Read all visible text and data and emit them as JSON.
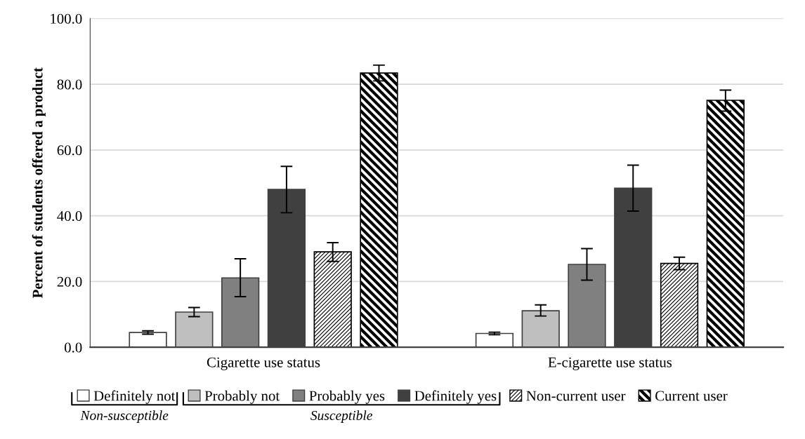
{
  "chart_data": {
    "type": "bar",
    "ylabel": "Percent of students offered a product",
    "categories": [
      "Cigarette use status",
      "E-cigarette use status"
    ],
    "series": [
      {
        "name": "Definitely not",
        "color": "#ffffff",
        "values": [
          4.5,
          4.2
        ],
        "errors": [
          [
            4.0,
            5.0
          ],
          [
            3.8,
            4.6
          ]
        ]
      },
      {
        "name": "Probably not",
        "color": "#bfbfbf",
        "values": [
          10.7,
          11.1
        ],
        "errors": [
          [
            9.3,
            12.1
          ],
          [
            9.5,
            12.9
          ]
        ]
      },
      {
        "name": "Probably yes",
        "color": "#808080",
        "values": [
          21.1,
          25.2
        ],
        "errors": [
          [
            15.4,
            26.9
          ],
          [
            20.4,
            30.0
          ]
        ]
      },
      {
        "name": "Definitely yes",
        "color": "#404040",
        "values": [
          48.0,
          48.4
        ],
        "errors": [
          [
            40.9,
            55.0
          ],
          [
            41.4,
            55.4
          ]
        ]
      },
      {
        "name": "Non-current user",
        "color": "#000000",
        "values": [
          29.0,
          25.5
        ],
        "errors": [
          [
            26.1,
            31.8
          ],
          [
            23.6,
            27.4
          ]
        ]
      },
      {
        "name": "Current user",
        "color": "#000000",
        "values": [
          83.4,
          75.1
        ],
        "errors": [
          [
            81.0,
            85.8
          ],
          [
            71.8,
            78.2
          ]
        ]
      }
    ],
    "ylim": [
      0,
      100
    ],
    "yticks": [
      {
        "value": 0,
        "label": "0.0"
      },
      {
        "value": 20,
        "label": "20.0"
      },
      {
        "value": 40,
        "label": "40.0"
      },
      {
        "value": 60,
        "label": "60.0"
      },
      {
        "value": 80,
        "label": "80.0"
      },
      {
        "value": 100,
        "label": "100.0"
      }
    ],
    "grid": "y",
    "legend": "bottom",
    "annotations": [
      "Non-susceptible",
      "Susceptible"
    ]
  }
}
